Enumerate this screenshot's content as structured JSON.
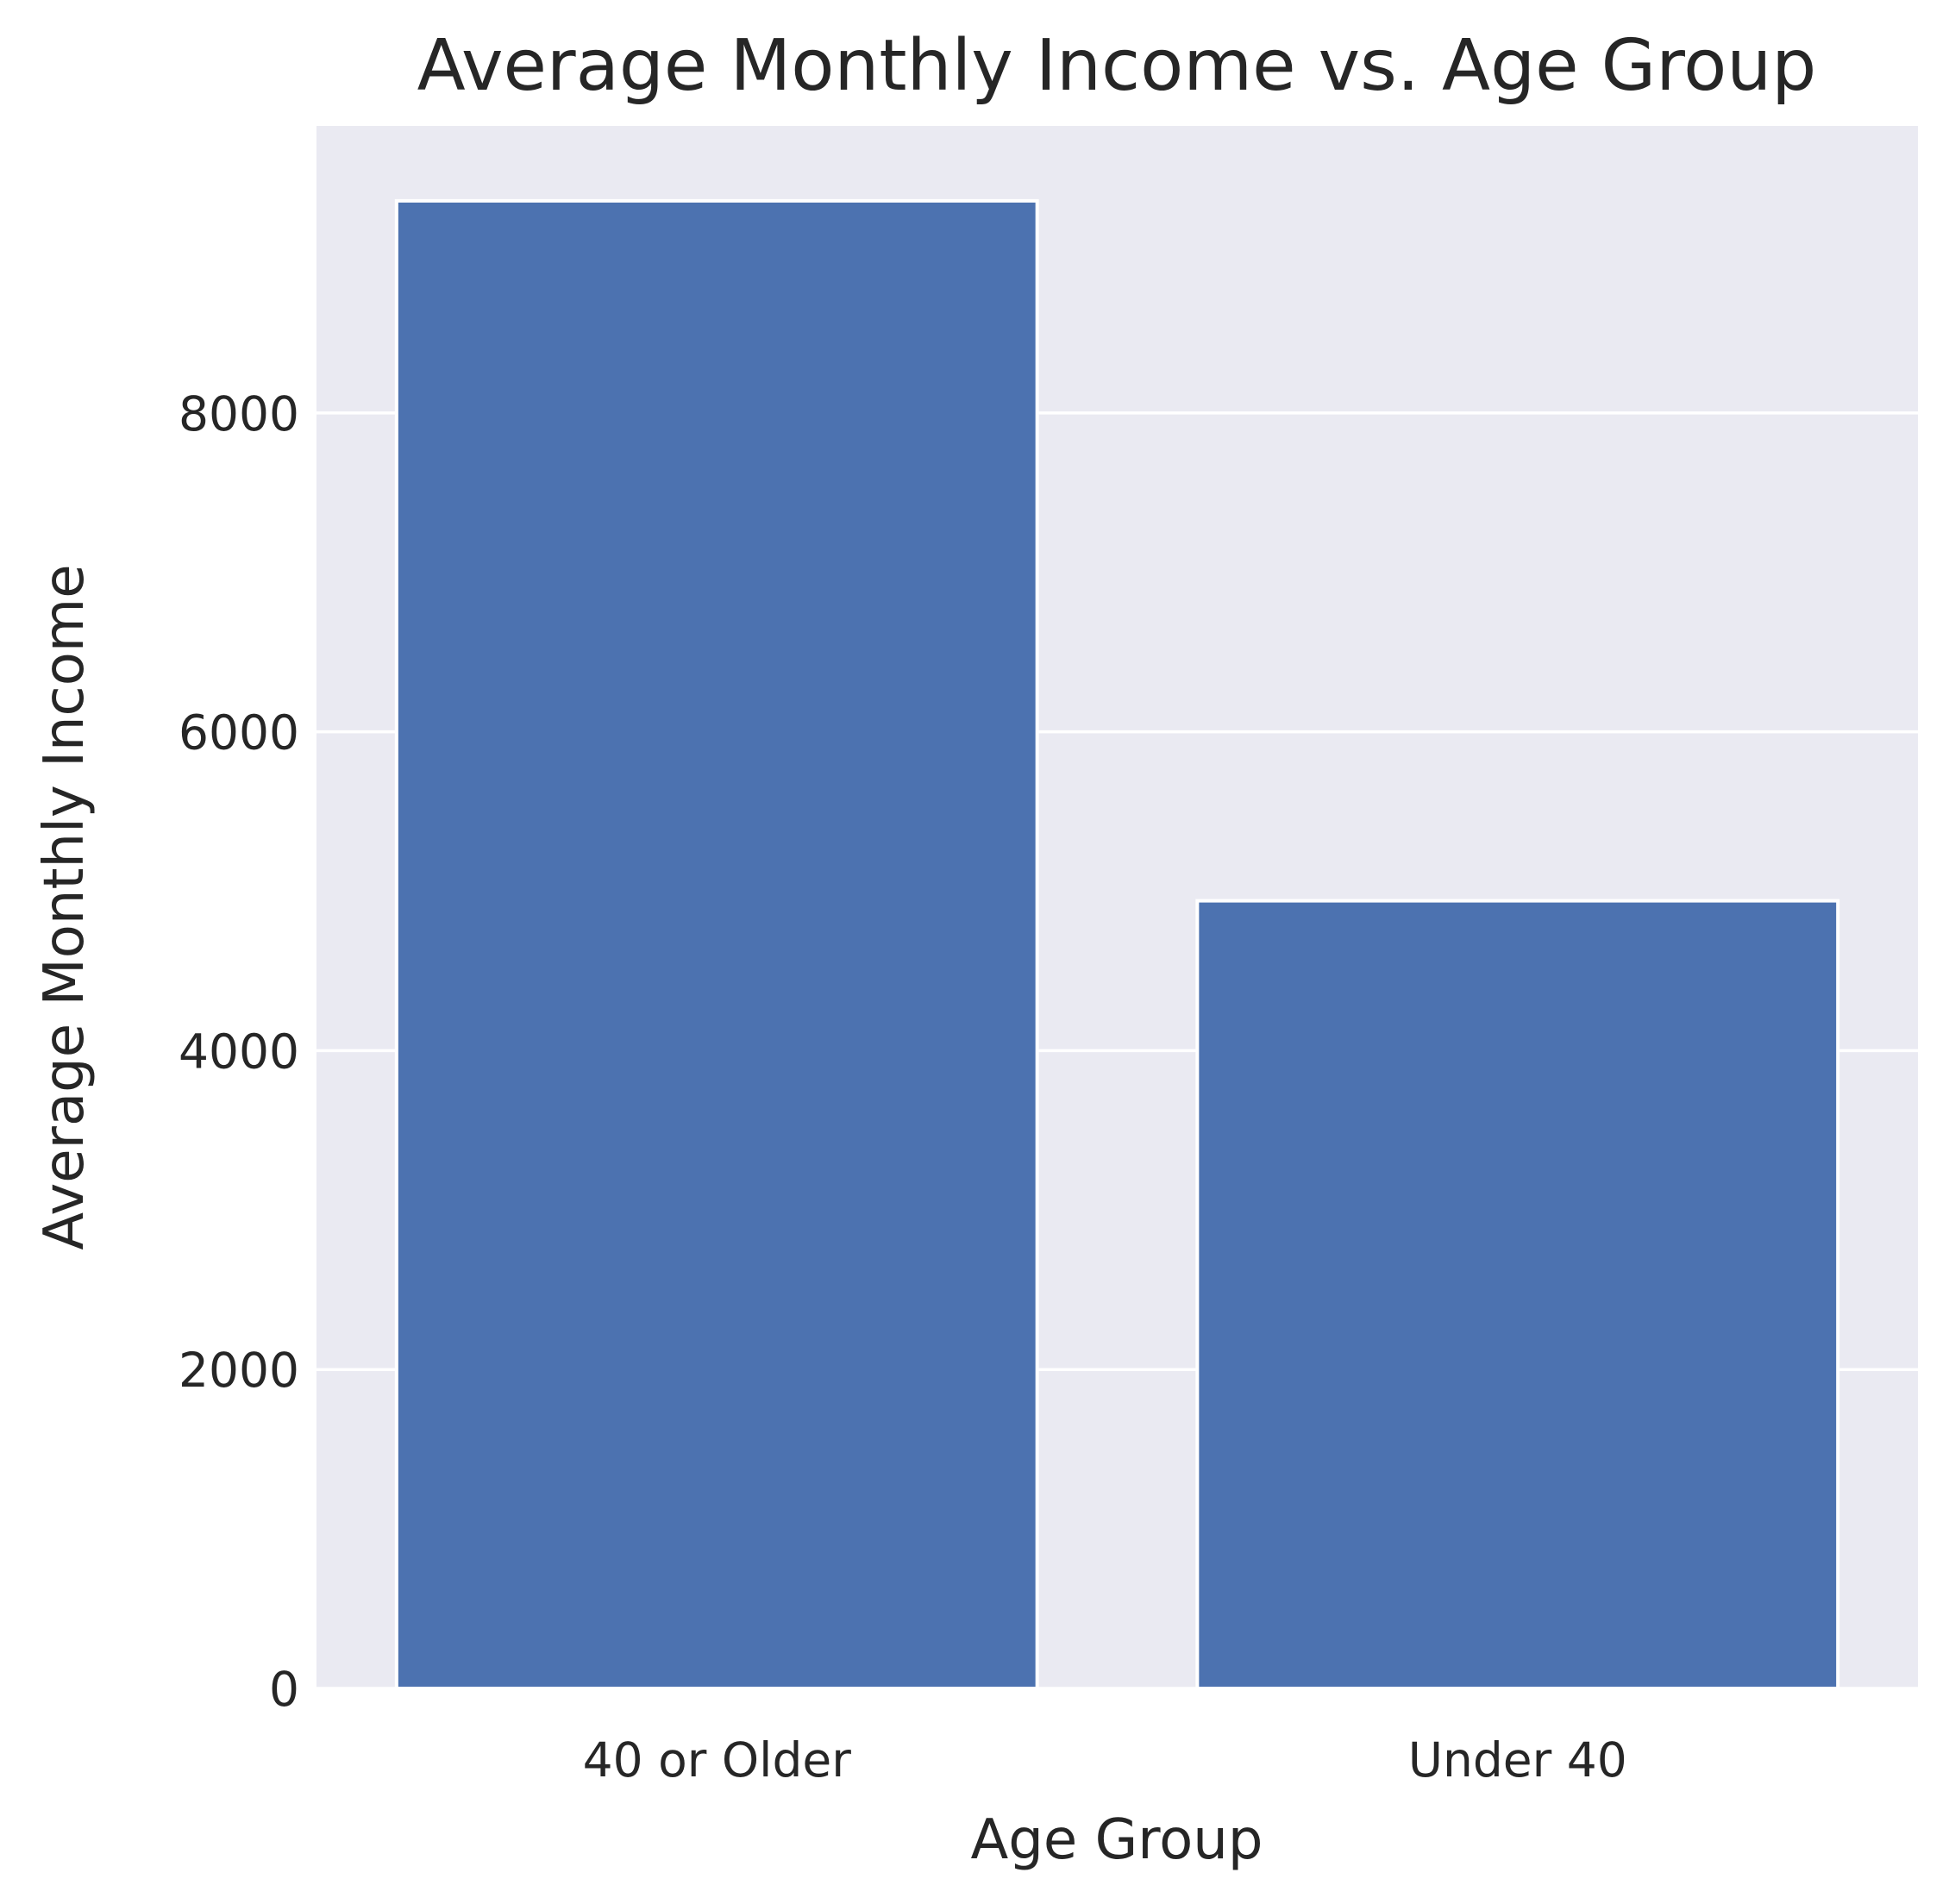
{
  "chart_data": {
    "type": "bar",
    "title": "Average Monthly Income vs. Age Group",
    "xlabel": "Age Group",
    "ylabel": "Average Monthly Income",
    "categories": [
      "40 or Older",
      "Under 40"
    ],
    "values": [
      9330,
      4940
    ],
    "ylim": [
      0,
      9800
    ],
    "yticks": [
      0,
      2000,
      4000,
      6000,
      8000
    ],
    "ytick_labels": [
      "0",
      "2000",
      "4000",
      "6000",
      "8000"
    ],
    "grid": true,
    "legend": "none",
    "colors": {
      "bar": "#4c72b0",
      "plot_background": "#eaeaf2",
      "grid": "#ffffff",
      "text": "#262626"
    }
  }
}
